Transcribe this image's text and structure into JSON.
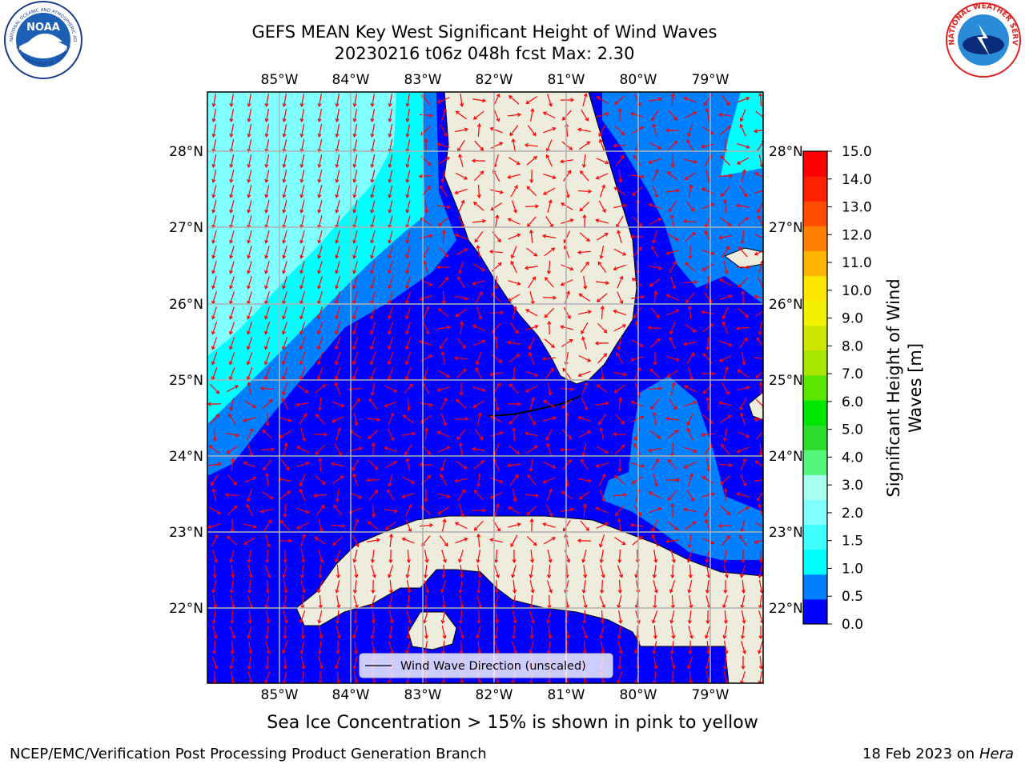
{
  "title": {
    "line1": "GEFS MEAN Key West Significant Height of Wind Waves",
    "line2": "20230216 t06z 048h fcst   Max: 2.30"
  },
  "map": {
    "lon_ticks": [
      "85°W",
      "84°W",
      "83°W",
      "82°W",
      "81°W",
      "80°W",
      "79°W"
    ],
    "lat_ticks": [
      "28°N",
      "27°N",
      "26°N",
      "25°N",
      "24°N",
      "23°N",
      "22°N"
    ],
    "colors": {
      "land": "#eeecdc",
      "ocean_low": "#0000ff",
      "ocean_mid": "#007fff",
      "ocean_hi": "#00ffff",
      "ocean_top": "#7fffff",
      "arrow": "#ff0000",
      "grid": "#b0b0b0"
    },
    "legend_label": "Wind Wave Direction (unscaled)"
  },
  "colorbar": {
    "ticks": [
      "0.0",
      "0.5",
      "1.0",
      "1.5",
      "2.0",
      "3.0",
      "4.0",
      "5.0",
      "6.0",
      "7.0",
      "8.0",
      "9.0",
      "10.0",
      "11.0",
      "12.0",
      "13.0",
      "14.0",
      "15.0"
    ],
    "colors": [
      "#0000ff",
      "#007fff",
      "#00ffff",
      "#40ffff",
      "#7fffff",
      "#a8fff0",
      "#54f57b",
      "#2bdc2b",
      "#00e600",
      "#5ae600",
      "#a8e600",
      "#cce600",
      "#f2f200",
      "#ffe600",
      "#ffb400",
      "#ff8000",
      "#ff4d00",
      "#ff2000",
      "#ff0000"
    ],
    "label_line1": "Significant Height of Wind",
    "label_line2": "Waves [m]"
  },
  "footer": {
    "ice_note": "Sea Ice Concentration > 15% is shown in pink to yellow",
    "credit": "NCEP/EMC/Verification Post Processing Product Generation Branch",
    "date_prefix": "18 Feb 2023 on",
    "machine": "Hera"
  },
  "logos": {
    "noaa_text": "NOAA",
    "noaa_ring": "NATIONAL OCEANIC AND ATMOSPHERIC ADMINISTRATION",
    "noaa_ring_bottom": "U.S. DEPARTMENT OF COMMERCE",
    "nws_ring": "NATIONAL WEATHER SERVICE"
  }
}
